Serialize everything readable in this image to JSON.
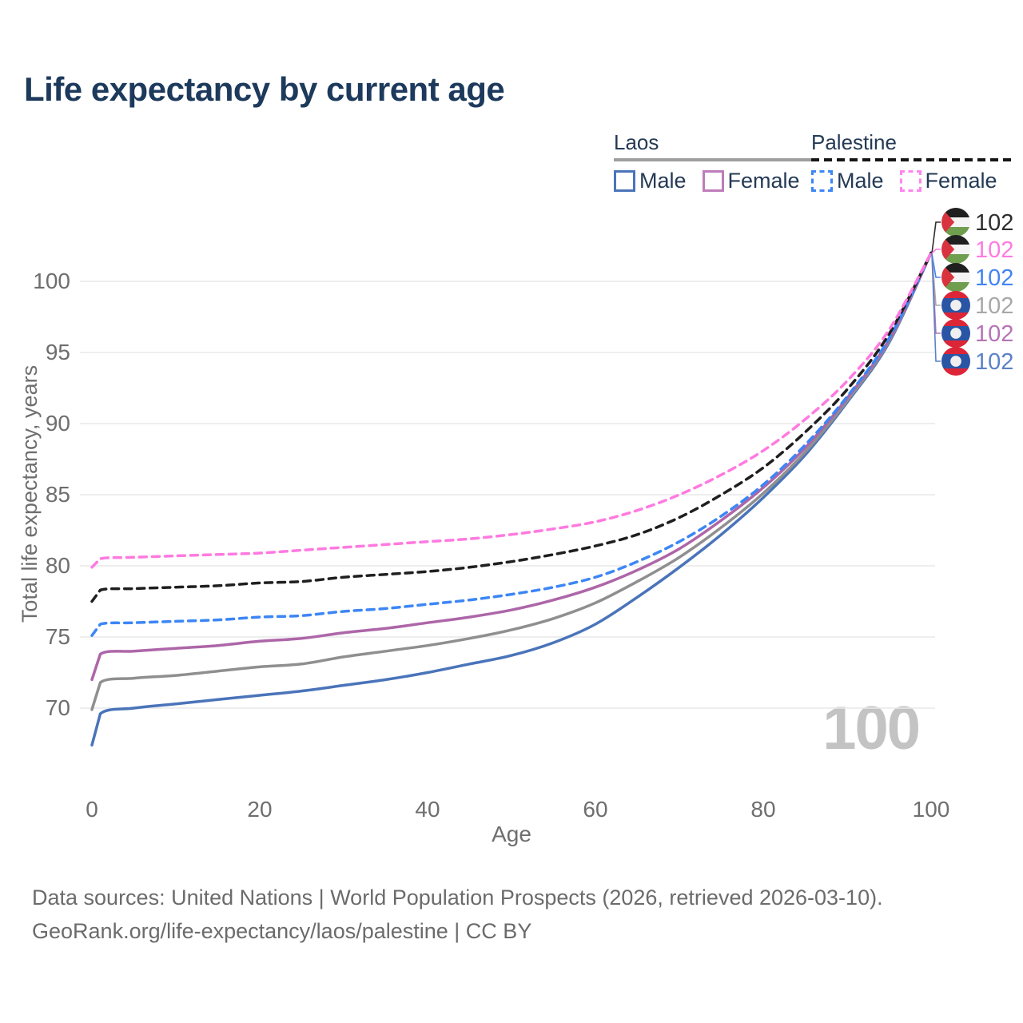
{
  "title": "Life expectancy by current age",
  "watermark": "100",
  "legend": {
    "groups": [
      {
        "label": "Laos",
        "underline_style": "solid",
        "underline_color": "#9e9e9e",
        "items": [
          {
            "label": "Male",
            "color": "#4a74ba",
            "dash": false
          },
          {
            "label": "Female",
            "color": "#bd7cba",
            "dash": false
          }
        ]
      },
      {
        "label": "Palestine",
        "underline_style": "dashed",
        "underline_color": "#151515",
        "items": [
          {
            "label": "Male",
            "color": "#3d86f5",
            "dash": true
          },
          {
            "label": "Female",
            "color": "#ff85ec",
            "dash": true
          }
        ]
      }
    ]
  },
  "chart_data": {
    "type": "line",
    "title": "Life expectancy by current age",
    "xlabel": "Age",
    "ylabel": "Total life expectancy, years",
    "xticks": [
      0,
      20,
      40,
      60,
      80,
      100
    ],
    "yticks": [
      70,
      75,
      80,
      85,
      90,
      95,
      100
    ],
    "xlim": [
      0,
      100
    ],
    "ylim": [
      66.5,
      103
    ],
    "grid": "horizontal",
    "x": [
      0,
      1,
      5,
      10,
      15,
      20,
      25,
      30,
      35,
      40,
      45,
      50,
      55,
      60,
      65,
      70,
      75,
      80,
      85,
      90,
      95,
      100
    ],
    "series": [
      {
        "name": "Laos Male",
        "country": "Laos",
        "sex": "Male",
        "color": "#4a74ba",
        "dash": false,
        "values": [
          67.4,
          69.6,
          70.0,
          70.3,
          70.6,
          70.9,
          71.2,
          71.6,
          72.0,
          72.5,
          73.1,
          73.7,
          74.6,
          75.9,
          77.8,
          79.9,
          82.2,
          84.8,
          87.8,
          91.5,
          95.7,
          102
        ]
      },
      {
        "name": "Laos Both",
        "country": "Laos",
        "sex": "Both",
        "color": "#8f8f8f",
        "dash": false,
        "values": [
          69.9,
          71.8,
          72.1,
          72.3,
          72.6,
          72.9,
          73.1,
          73.6,
          74.0,
          74.4,
          74.9,
          75.5,
          76.3,
          77.4,
          78.9,
          80.6,
          82.7,
          85.1,
          88.0,
          91.6,
          95.8,
          102
        ]
      },
      {
        "name": "Laos Female",
        "country": "Laos",
        "sex": "Female",
        "color": "#ad66a8",
        "dash": false,
        "values": [
          72.0,
          73.8,
          74.0,
          74.2,
          74.4,
          74.7,
          74.9,
          75.3,
          75.6,
          76.0,
          76.4,
          76.9,
          77.6,
          78.5,
          79.7,
          81.2,
          83.2,
          85.5,
          88.3,
          91.8,
          95.9,
          102
        ]
      },
      {
        "name": "Palestine Male",
        "country": "Palestine",
        "sex": "Male",
        "color": "#3d86f5",
        "dash": true,
        "values": [
          75.1,
          75.9,
          76.0,
          76.1,
          76.2,
          76.4,
          76.5,
          76.8,
          77.0,
          77.3,
          77.6,
          78.0,
          78.5,
          79.2,
          80.3,
          81.7,
          83.5,
          85.7,
          88.5,
          91.9,
          96.0,
          102
        ]
      },
      {
        "name": "Palestine Both",
        "country": "Palestine",
        "sex": "Both",
        "color": "#1f1f1f",
        "dash": true,
        "values": [
          77.5,
          78.3,
          78.4,
          78.5,
          78.6,
          78.8,
          78.9,
          79.2,
          79.4,
          79.6,
          79.9,
          80.3,
          80.8,
          81.4,
          82.2,
          83.4,
          85.0,
          86.9,
          89.4,
          92.4,
          96.3,
          102
        ]
      },
      {
        "name": "Palestine Female",
        "country": "Palestine",
        "sex": "Female",
        "color": "#ff7ae0",
        "dash": true,
        "values": [
          79.9,
          80.5,
          80.6,
          80.7,
          80.8,
          80.9,
          81.1,
          81.3,
          81.5,
          81.7,
          81.9,
          82.2,
          82.6,
          83.1,
          83.9,
          85.0,
          86.4,
          88.1,
          90.3,
          93.0,
          96.6,
          102
        ]
      }
    ],
    "end_labels": [
      {
        "value": "102",
        "flag": "palestine",
        "color": "#2e2e2e"
      },
      {
        "value": "102",
        "flag": "palestine",
        "color": "#ff7ae0"
      },
      {
        "value": "102",
        "flag": "palestine",
        "color": "#4285f4"
      },
      {
        "value": "102",
        "flag": "laos",
        "color": "#a8a8a8"
      },
      {
        "value": "102",
        "flag": "laos",
        "color": "#b574b5"
      },
      {
        "value": "102",
        "flag": "laos",
        "color": "#5b82c6"
      }
    ]
  },
  "footer": {
    "line1": "Data sources: United Nations | World Population Prospects (2026, retrieved 2026-03-10).",
    "line2": "GeoRank.org/life-expectancy/laos/palestine | CC BY"
  }
}
